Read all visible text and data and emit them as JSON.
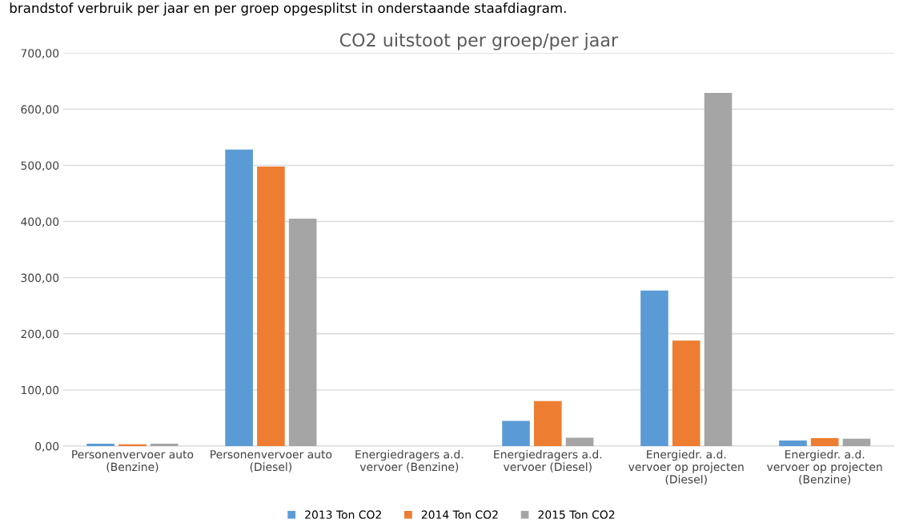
{
  "chart_data": {
    "type": "bar",
    "title": "CO2 uitstoot per groep/per jaar",
    "annotations": [
      "brandstof verbruik per jaar en per groep opgesplitst in onderstaande staafdiagram."
    ],
    "categories": [
      "Personenvervoer auto\n(Benzine)",
      "Personenvervoer auto\n(Diesel)",
      "Energiedragers a.d.\nvervoer (Benzine)",
      "Energiedragers a.d.\nvervoer (Diesel)",
      "Energiedr. a.d.\nvervoer op projecten\n(Diesel)",
      "Energiedr. a.d.\nvervoer op projecten\n(Benzine)"
    ],
    "series": [
      {
        "name": "2013 Ton CO2",
        "color": "#5b9bd5",
        "values": [
          4,
          528,
          0,
          45,
          277,
          10
        ]
      },
      {
        "name": "2014 Ton CO2",
        "color": "#ed7d31",
        "values": [
          3,
          498,
          0,
          80,
          188,
          14
        ]
      },
      {
        "name": "2015 Ton CO2",
        "color": "#a5a5a5",
        "values": [
          4,
          405,
          0,
          15,
          629,
          13
        ]
      }
    ],
    "ylim": [
      0,
      700
    ],
    "yticks": [
      {
        "value": 0,
        "label": "0,00"
      },
      {
        "value": 100,
        "label": "100,00"
      },
      {
        "value": 200,
        "label": "200,00"
      },
      {
        "value": 300,
        "label": "300,00"
      },
      {
        "value": 400,
        "label": "400,00"
      },
      {
        "value": 500,
        "label": "500,00"
      },
      {
        "value": 600,
        "label": "600,00"
      },
      {
        "value": 700,
        "label": "700,00"
      }
    ],
    "grid": "y",
    "legend": "bottom"
  }
}
